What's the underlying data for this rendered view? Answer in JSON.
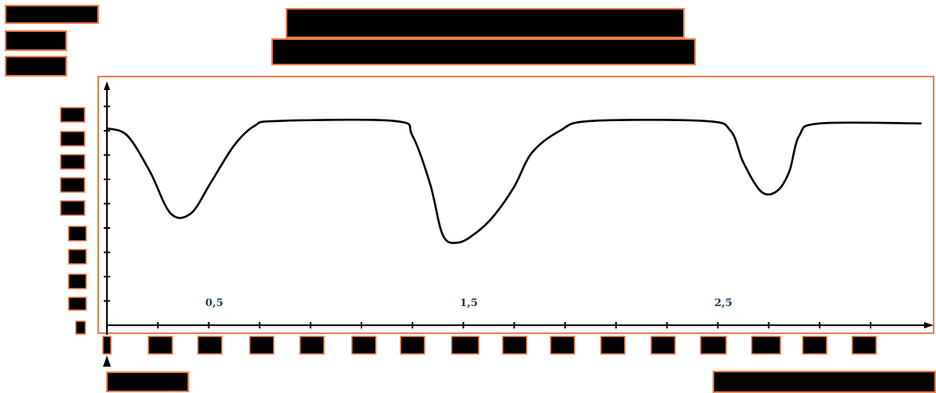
{
  "chart_data": {
    "type": "line",
    "title": "",
    "xlabel": "",
    "ylabel": "",
    "x_tick_labels": [
      "0,5",
      "1,5",
      "2,5"
    ],
    "x_tick_values": [
      0.5,
      1.5,
      2.5
    ],
    "xlim": [
      0,
      3.2
    ],
    "ylim": [
      0,
      1.0
    ],
    "grid": false,
    "series": [
      {
        "x": [
          0.0,
          0.08,
          0.17,
          0.25,
          0.33,
          0.41,
          0.5,
          0.58,
          0.67,
          1.13,
          1.2,
          1.27,
          1.32,
          1.38,
          1.45,
          1.52,
          1.6,
          1.67,
          1.78,
          1.9,
          2.35,
          2.45,
          2.5,
          2.57,
          2.63,
          2.68,
          2.72,
          2.8,
          3.2
        ],
        "y": [
          0.81,
          0.78,
          0.63,
          0.46,
          0.46,
          0.59,
          0.74,
          0.82,
          0.84,
          0.84,
          0.78,
          0.58,
          0.37,
          0.34,
          0.38,
          0.45,
          0.57,
          0.71,
          0.8,
          0.84,
          0.84,
          0.8,
          0.67,
          0.55,
          0.55,
          0.63,
          0.78,
          0.83,
          0.83
        ],
        "color": "#000000"
      }
    ]
  }
}
